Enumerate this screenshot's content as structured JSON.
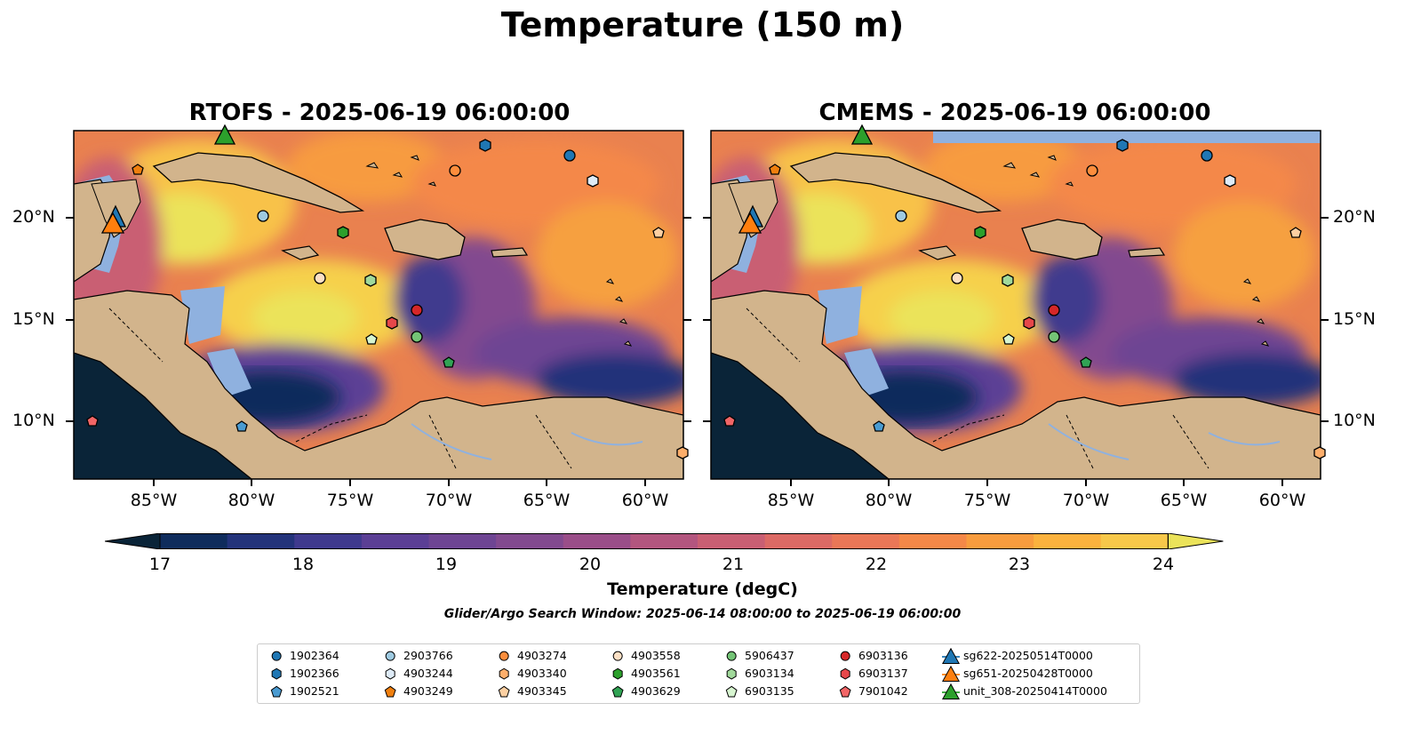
{
  "figure_title": "Temperature (150 m)",
  "panels": [
    {
      "title": "RTOFS - 2025-06-19 06:00:00"
    },
    {
      "title": "CMEMS - 2025-06-19 06:00:00"
    }
  ],
  "lat_ticks": [
    "10°N",
    "15°N",
    "20°N"
  ],
  "lon_ticks": [
    "85°W",
    "80°W",
    "75°W",
    "70°W",
    "65°W",
    "60°W"
  ],
  "colorbar": {
    "label": "Temperature (degC)",
    "ticks": [
      "17",
      "18",
      "19",
      "20",
      "21",
      "22",
      "23",
      "24"
    ],
    "colors": [
      "#0a2438",
      "#0f2c5c",
      "#23337a",
      "#3f3a8e",
      "#5b3f95",
      "#6e4593",
      "#824a8f",
      "#9a4e89",
      "#b3567f",
      "#c95f73",
      "#dc6a65",
      "#ea7757",
      "#f48848",
      "#f89c3e",
      "#fbb23e",
      "#f7c84a",
      "#ebe35a"
    ]
  },
  "search_window": "Glider/Argo Search Window: 2025-06-14 08:00:00 to 2025-06-19 06:00:00",
  "legend": [
    {
      "label": "1902364",
      "marker": "circle",
      "color": "#1f77b4"
    },
    {
      "label": "1902366",
      "marker": "hexagon",
      "color": "#1f77b4"
    },
    {
      "label": "1902521",
      "marker": "pentagon",
      "color": "#4a9bd1"
    },
    {
      "label": "2903766",
      "marker": "circle",
      "color": "#9ecae1"
    },
    {
      "label": "4903244",
      "marker": "hexagon",
      "color": "#deebf7"
    },
    {
      "label": "4903249",
      "marker": "pentagon",
      "color": "#f07f0e"
    },
    {
      "label": "4903274",
      "marker": "circle",
      "color": "#fd8d3c"
    },
    {
      "label": "4903340",
      "marker": "hexagon",
      "color": "#fdae6b"
    },
    {
      "label": "4903345",
      "marker": "pentagon",
      "color": "#fdd0a2"
    },
    {
      "label": "4903558",
      "marker": "circle",
      "color": "#fde0c5"
    },
    {
      "label": "4903561",
      "marker": "hexagon",
      "color": "#2ca02c"
    },
    {
      "label": "4903629",
      "marker": "pentagon",
      "color": "#31a354"
    },
    {
      "label": "5906437",
      "marker": "circle",
      "color": "#74c476"
    },
    {
      "label": "6903134",
      "marker": "hexagon",
      "color": "#a1d99b"
    },
    {
      "label": "6903135",
      "marker": "pentagon",
      "color": "#d7f5d0"
    },
    {
      "label": "6903136",
      "marker": "circle",
      "color": "#d62728"
    },
    {
      "label": "6903137",
      "marker": "hexagon",
      "color": "#e6474a"
    },
    {
      "label": "7901042",
      "marker": "pentagon",
      "color": "#f16566"
    },
    {
      "label": "sg622-20250514T0000",
      "marker": "triangle",
      "color": "#1f77b4"
    },
    {
      "label": "sg651-20250428T0000",
      "marker": "triangle",
      "color": "#ff7f0e"
    },
    {
      "label": "unit_308-20250414T0000",
      "marker": "triangle",
      "color": "#2ca02c"
    }
  ]
}
